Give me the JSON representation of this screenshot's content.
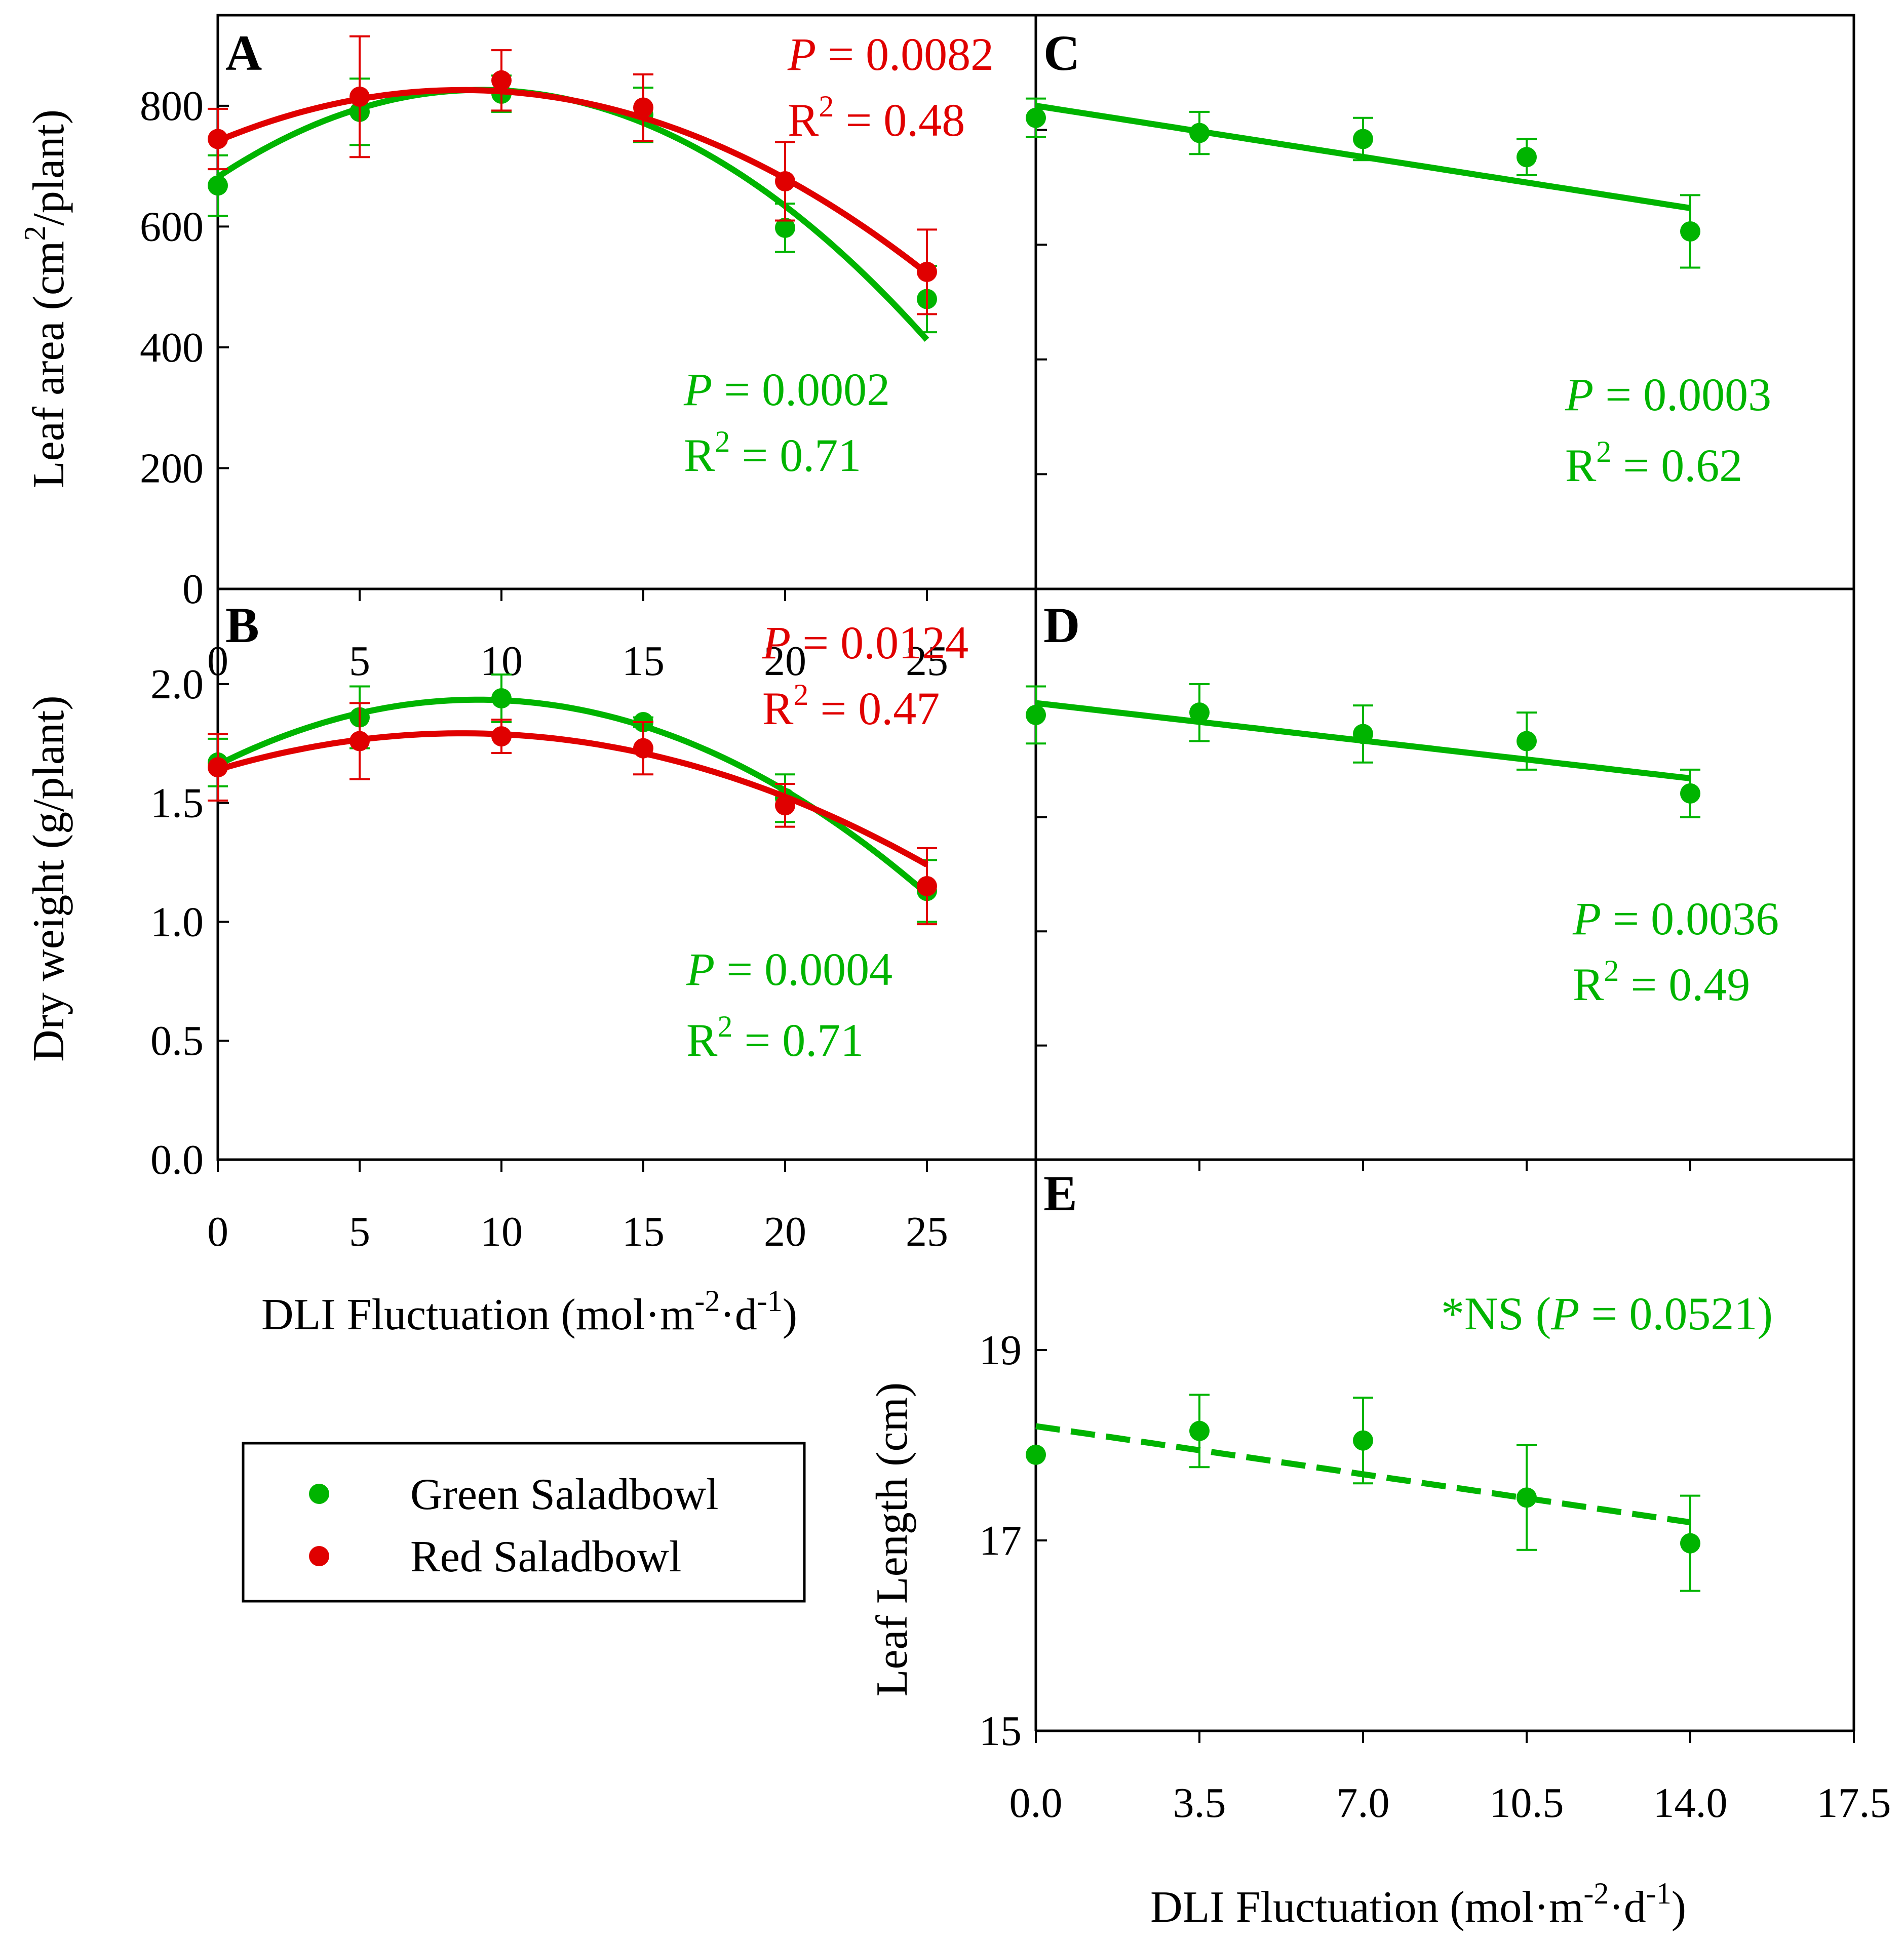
{
  "colors": {
    "green": "#00b400",
    "red": "#e00000",
    "axis": "#000000"
  },
  "legend": {
    "items": [
      {
        "label": "Green Saladbowl",
        "color": "#00b400"
      },
      {
        "label": "Red Saladbowl",
        "color": "#e00000"
      }
    ]
  },
  "x_titles": {
    "left": {
      "main": "DLI Fluctuation (mol",
      "dot1": "·",
      "m": "m",
      "sup1": "-2",
      "dot2": "·",
      "d": "d",
      "sup2": "-1",
      "close": ")"
    },
    "right": {
      "main": "DLI Fluctuation (mol",
      "dot1": "·",
      "m": "m",
      "sup1": "-2",
      "dot2": "·",
      "d": "d",
      "sup2": "-1",
      "close": ")"
    }
  },
  "chart_data": [
    {
      "panel": "A",
      "type": "scatter",
      "ylabel": {
        "pre": "Leaf area (cm",
        "sup": "2",
        "post": "/plant)"
      },
      "xlim": [
        0,
        25
      ],
      "ylim": [
        0,
        950
      ],
      "yticks": [
        0,
        200,
        400,
        600,
        800
      ],
      "xticks": [
        0,
        5,
        10,
        15,
        20,
        25
      ],
      "series": [
        {
          "name": "Green Saladbowl",
          "color": "green",
          "points": [
            {
              "x": 0,
              "y": 668,
              "err": 50
            },
            {
              "x": 5,
              "y": 790,
              "err": 55
            },
            {
              "x": 10,
              "y": 820,
              "err": 30
            },
            {
              "x": 15,
              "y": 785,
              "err": 45
            },
            {
              "x": 20,
              "y": 598,
              "err": 40
            },
            {
              "x": 25,
              "y": 480,
              "err": 55
            }
          ],
          "fit": {
            "kind": "quadratic",
            "coef": [
              682,
              31.1,
              -1.675
            ]
          }
        },
        {
          "name": "Red Saladbowl",
          "color": "red",
          "points": [
            {
              "x": 0,
              "y": 745,
              "err": 50
            },
            {
              "x": 5,
              "y": 815,
              "err": 100
            },
            {
              "x": 10,
              "y": 842,
              "err": 50
            },
            {
              "x": 15,
              "y": 797,
              "err": 55
            },
            {
              "x": 20,
              "y": 675,
              "err": 65
            },
            {
              "x": 25,
              "y": 525,
              "err": 70
            }
          ],
          "fit": {
            "kind": "quadratic",
            "coef": [
              742,
              19.5,
              -1.131
            ]
          }
        }
      ],
      "stats": [
        {
          "color": "red",
          "p_label": "P",
          "p_value": " = 0.0082",
          "r_label": "R",
          "r_sup": "2",
          "r_value": " = 0.48"
        },
        {
          "color": "green",
          "p_label": "P",
          "p_value": " = 0.0002",
          "r_label": "R",
          "r_sup": "2",
          "r_value": " = 0.71"
        }
      ]
    },
    {
      "panel": "B",
      "type": "scatter",
      "ylabel": {
        "pre": "Dry weight (g/plant)",
        "sup": "",
        "post": ""
      },
      "xlim": [
        0,
        25
      ],
      "ylim": [
        0,
        2.4
      ],
      "yticks": [
        0.0,
        0.5,
        1.0,
        1.5,
        2.0
      ],
      "ytick_labels": [
        "0.0",
        "0.5",
        "1.0",
        "1.5",
        "2.0"
      ],
      "xticks": [
        0,
        5,
        10,
        15,
        20,
        25
      ],
      "series": [
        {
          "name": "Green Saladbowl",
          "color": "green",
          "points": [
            {
              "x": 0,
              "y": 1.67,
              "err": 0.1
            },
            {
              "x": 5,
              "y": 1.86,
              "err": 0.13
            },
            {
              "x": 10,
              "y": 1.94,
              "err": 0.1
            },
            {
              "x": 15,
              "y": 1.84,
              "err": 0.02
            },
            {
              "x": 20,
              "y": 1.52,
              "err": 0.1
            },
            {
              "x": 25,
              "y": 1.13,
              "err": 0.13
            }
          ],
          "fit": {
            "kind": "quadratic",
            "coef": [
              1.66,
              0.0598,
              -0.00326
            ]
          }
        },
        {
          "name": "Red Saladbowl",
          "color": "red",
          "points": [
            {
              "x": 0,
              "y": 1.65,
              "err": 0.14
            },
            {
              "x": 5,
              "y": 1.76,
              "err": 0.16
            },
            {
              "x": 10,
              "y": 1.78,
              "err": 0.07
            },
            {
              "x": 15,
              "y": 1.73,
              "err": 0.11
            },
            {
              "x": 20,
              "y": 1.49,
              "err": 0.09
            },
            {
              "x": 25,
              "y": 1.15,
              "err": 0.16
            }
          ],
          "fit": {
            "kind": "quadratic",
            "coef": [
              1.64,
              0.0355,
              -0.00206
            ]
          }
        }
      ],
      "stats": [
        {
          "color": "red",
          "p_label": "P",
          "p_value": " = 0.0124",
          "r_label": "R",
          "r_sup": "2",
          "r_value": " = 0.47"
        },
        {
          "color": "green",
          "p_label": "P",
          "p_value": " = 0.0004",
          "r_label": "R",
          "r_sup": "2",
          "r_value": " = 0.71"
        }
      ]
    },
    {
      "panel": "C",
      "type": "scatter",
      "xlim": [
        0,
        17.5
      ],
      "ylim": [
        0,
        950
      ],
      "series": [
        {
          "name": "Green Saladbowl",
          "color": "green",
          "points": [
            {
              "x": 0,
              "y": 780,
              "err": 32
            },
            {
              "x": 3.5,
              "y": 755,
              "err": 35
            },
            {
              "x": 7,
              "y": 745,
              "err": 35
            },
            {
              "x": 10.5,
              "y": 715,
              "err": 30
            },
            {
              "x": 14,
              "y": 592,
              "err": 60
            }
          ],
          "fit": {
            "kind": "linear",
            "coef": [
              800,
              -12.1
            ],
            "x_range": [
              0,
              14
            ]
          }
        }
      ],
      "stats": [
        {
          "color": "green",
          "p_label": "P",
          "p_value": " = 0.0003",
          "r_label": "R",
          "r_sup": "2",
          "r_value": " = 0.62"
        }
      ]
    },
    {
      "panel": "D",
      "type": "scatter",
      "xlim": [
        0,
        17.5
      ],
      "ylim": [
        0,
        2.4
      ],
      "series": [
        {
          "name": "Green Saladbowl",
          "color": "green",
          "points": [
            {
              "x": 0,
              "y": 1.87,
              "err": 0.12
            },
            {
              "x": 3.5,
              "y": 1.88,
              "err": 0.12
            },
            {
              "x": 7,
              "y": 1.79,
              "err": 0.12
            },
            {
              "x": 10.5,
              "y": 1.76,
              "err": 0.12
            },
            {
              "x": 14,
              "y": 1.54,
              "err": 0.1
            }
          ],
          "fit": {
            "kind": "linear",
            "coef": [
              1.92,
              -0.0226
            ],
            "x_range": [
              0,
              14
            ]
          }
        }
      ],
      "stats": [
        {
          "color": "green",
          "p_label": "P",
          "p_value": " = 0.0036",
          "r_label": "R",
          "r_sup": "2",
          "r_value": " = 0.49"
        }
      ]
    },
    {
      "panel": "E",
      "type": "scatter",
      "ylabel": {
        "pre": "Leaf Length (cm)",
        "sup": "",
        "post": ""
      },
      "xlim": [
        0,
        17.5
      ],
      "ylim": [
        15,
        21
      ],
      "yticks": [
        15,
        17,
        19
      ],
      "xticks": [
        0,
        3.5,
        7,
        10.5,
        14,
        17.5
      ],
      "xtick_labels": [
        "0.0",
        "3.5",
        "7.0",
        "10.5",
        "14.0",
        "17.5"
      ],
      "series": [
        {
          "name": "Green Saladbowl",
          "color": "green",
          "points": [
            {
              "x": 0,
              "y": 17.9,
              "err": 0.0
            },
            {
              "x": 3.5,
              "y": 18.15,
              "err": 0.38
            },
            {
              "x": 7,
              "y": 18.05,
              "err": 0.45
            },
            {
              "x": 10.5,
              "y": 17.45,
              "err": 0.55
            },
            {
              "x": 14,
              "y": 16.97,
              "err": 0.5
            }
          ],
          "fit": {
            "kind": "linear",
            "coef": [
              18.2,
              -0.0721
            ],
            "x_range": [
              0,
              14
            ],
            "dashed": true
          }
        }
      ],
      "stats": [
        {
          "color": "green",
          "ns_prefix": "*NS (",
          "p_label": "P",
          "p_value": " = 0.0521)"
        }
      ]
    }
  ]
}
